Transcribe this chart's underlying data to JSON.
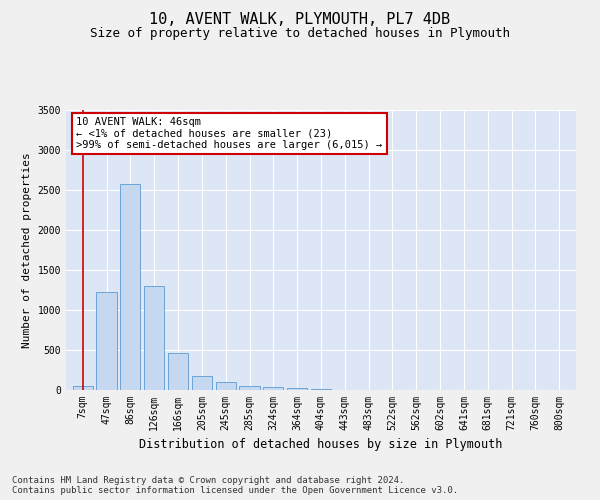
{
  "title": "10, AVENT WALK, PLYMOUTH, PL7 4DB",
  "subtitle": "Size of property relative to detached houses in Plymouth",
  "xlabel": "Distribution of detached houses by size in Plymouth",
  "ylabel": "Number of detached properties",
  "categories": [
    "7sqm",
    "47sqm",
    "86sqm",
    "126sqm",
    "166sqm",
    "205sqm",
    "245sqm",
    "285sqm",
    "324sqm",
    "364sqm",
    "404sqm",
    "443sqm",
    "483sqm",
    "522sqm",
    "562sqm",
    "602sqm",
    "641sqm",
    "681sqm",
    "721sqm",
    "760sqm",
    "800sqm"
  ],
  "values": [
    50,
    1220,
    2580,
    1300,
    460,
    175,
    100,
    50,
    40,
    20,
    10,
    5,
    3,
    2,
    1,
    1,
    1,
    0,
    0,
    0,
    0
  ],
  "bar_color": "#c5d8f0",
  "bar_edge_color": "#5b9bd5",
  "highlight_color": "#cc0000",
  "annotation_text": "10 AVENT WALK: 46sqm\n← <1% of detached houses are smaller (23)\n>99% of semi-detached houses are larger (6,015) →",
  "annotation_box_color": "#ffffff",
  "annotation_box_edge_color": "#cc0000",
  "ylim": [
    0,
    3500
  ],
  "yticks": [
    0,
    500,
    1000,
    1500,
    2000,
    2500,
    3000,
    3500
  ],
  "footer_line1": "Contains HM Land Registry data © Crown copyright and database right 2024.",
  "footer_line2": "Contains public sector information licensed under the Open Government Licence v3.0.",
  "fig_bg_color": "#f0f0f0",
  "plot_bg_color": "#dce6f5",
  "grid_color": "#ffffff",
  "title_fontsize": 11,
  "subtitle_fontsize": 9,
  "axis_label_fontsize": 8,
  "tick_fontsize": 7,
  "annotation_fontsize": 7.5,
  "footer_fontsize": 6.5
}
